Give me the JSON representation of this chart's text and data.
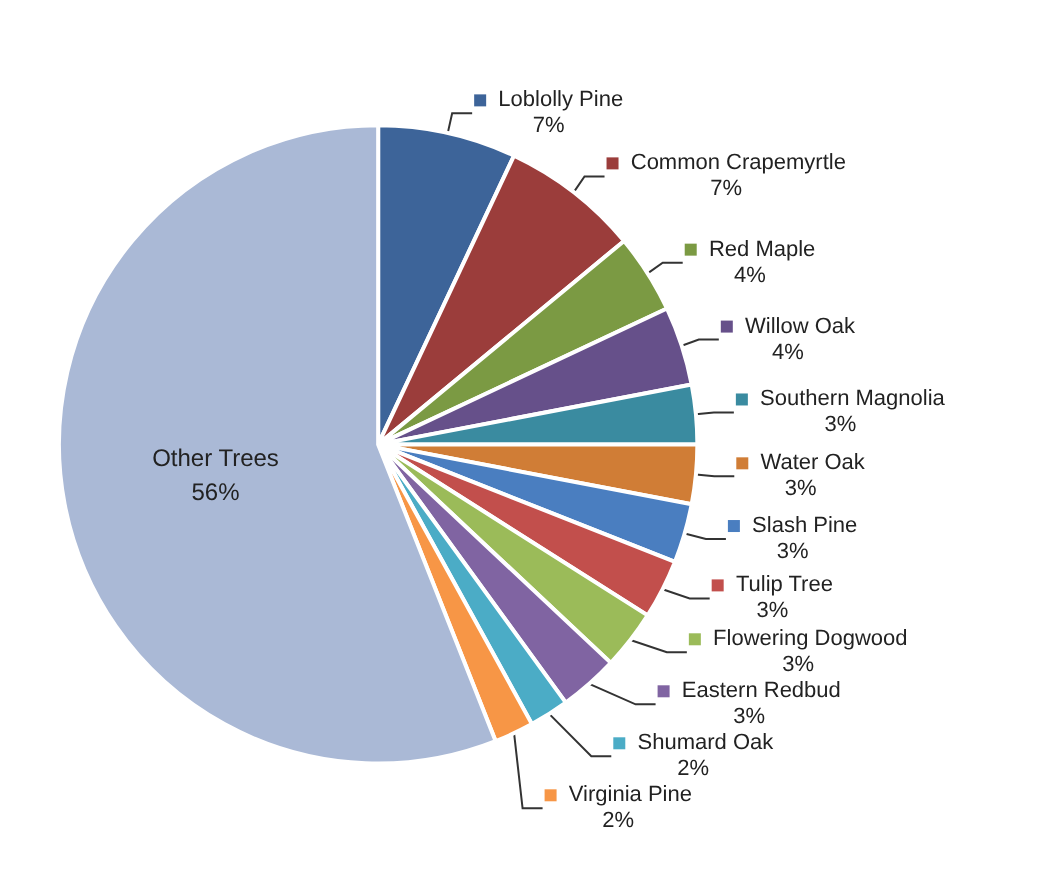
{
  "chart_data": {
    "type": "pie",
    "categories": [
      "Loblolly Pine",
      "Common Crapemyrtle",
      "Red Maple",
      "Willow Oak",
      "Southern Magnolia",
      "Water Oak",
      "Slash Pine",
      "Tulip Tree",
      "Flowering Dogwood",
      "Eastern Redbud",
      "Shumard Oak",
      "Virginia Pine",
      "Other Trees"
    ],
    "values": [
      7,
      7,
      4,
      4,
      3,
      3,
      3,
      3,
      3,
      3,
      2,
      2,
      56
    ],
    "value_labels": [
      "7%",
      "7%",
      "4%",
      "4%",
      "3%",
      "3%",
      "3%",
      "3%",
      "3%",
      "3%",
      "2%",
      "2%",
      "56%"
    ],
    "colors": [
      "#3d6499",
      "#9b3d3b",
      "#7b9a43",
      "#66508a",
      "#3a8ba0",
      "#d07d36",
      "#4a7ec0",
      "#c24f4c",
      "#9bbb59",
      "#8064a2",
      "#4bacc6",
      "#f79646",
      "#aab9d6"
    ],
    "legend": "right"
  }
}
